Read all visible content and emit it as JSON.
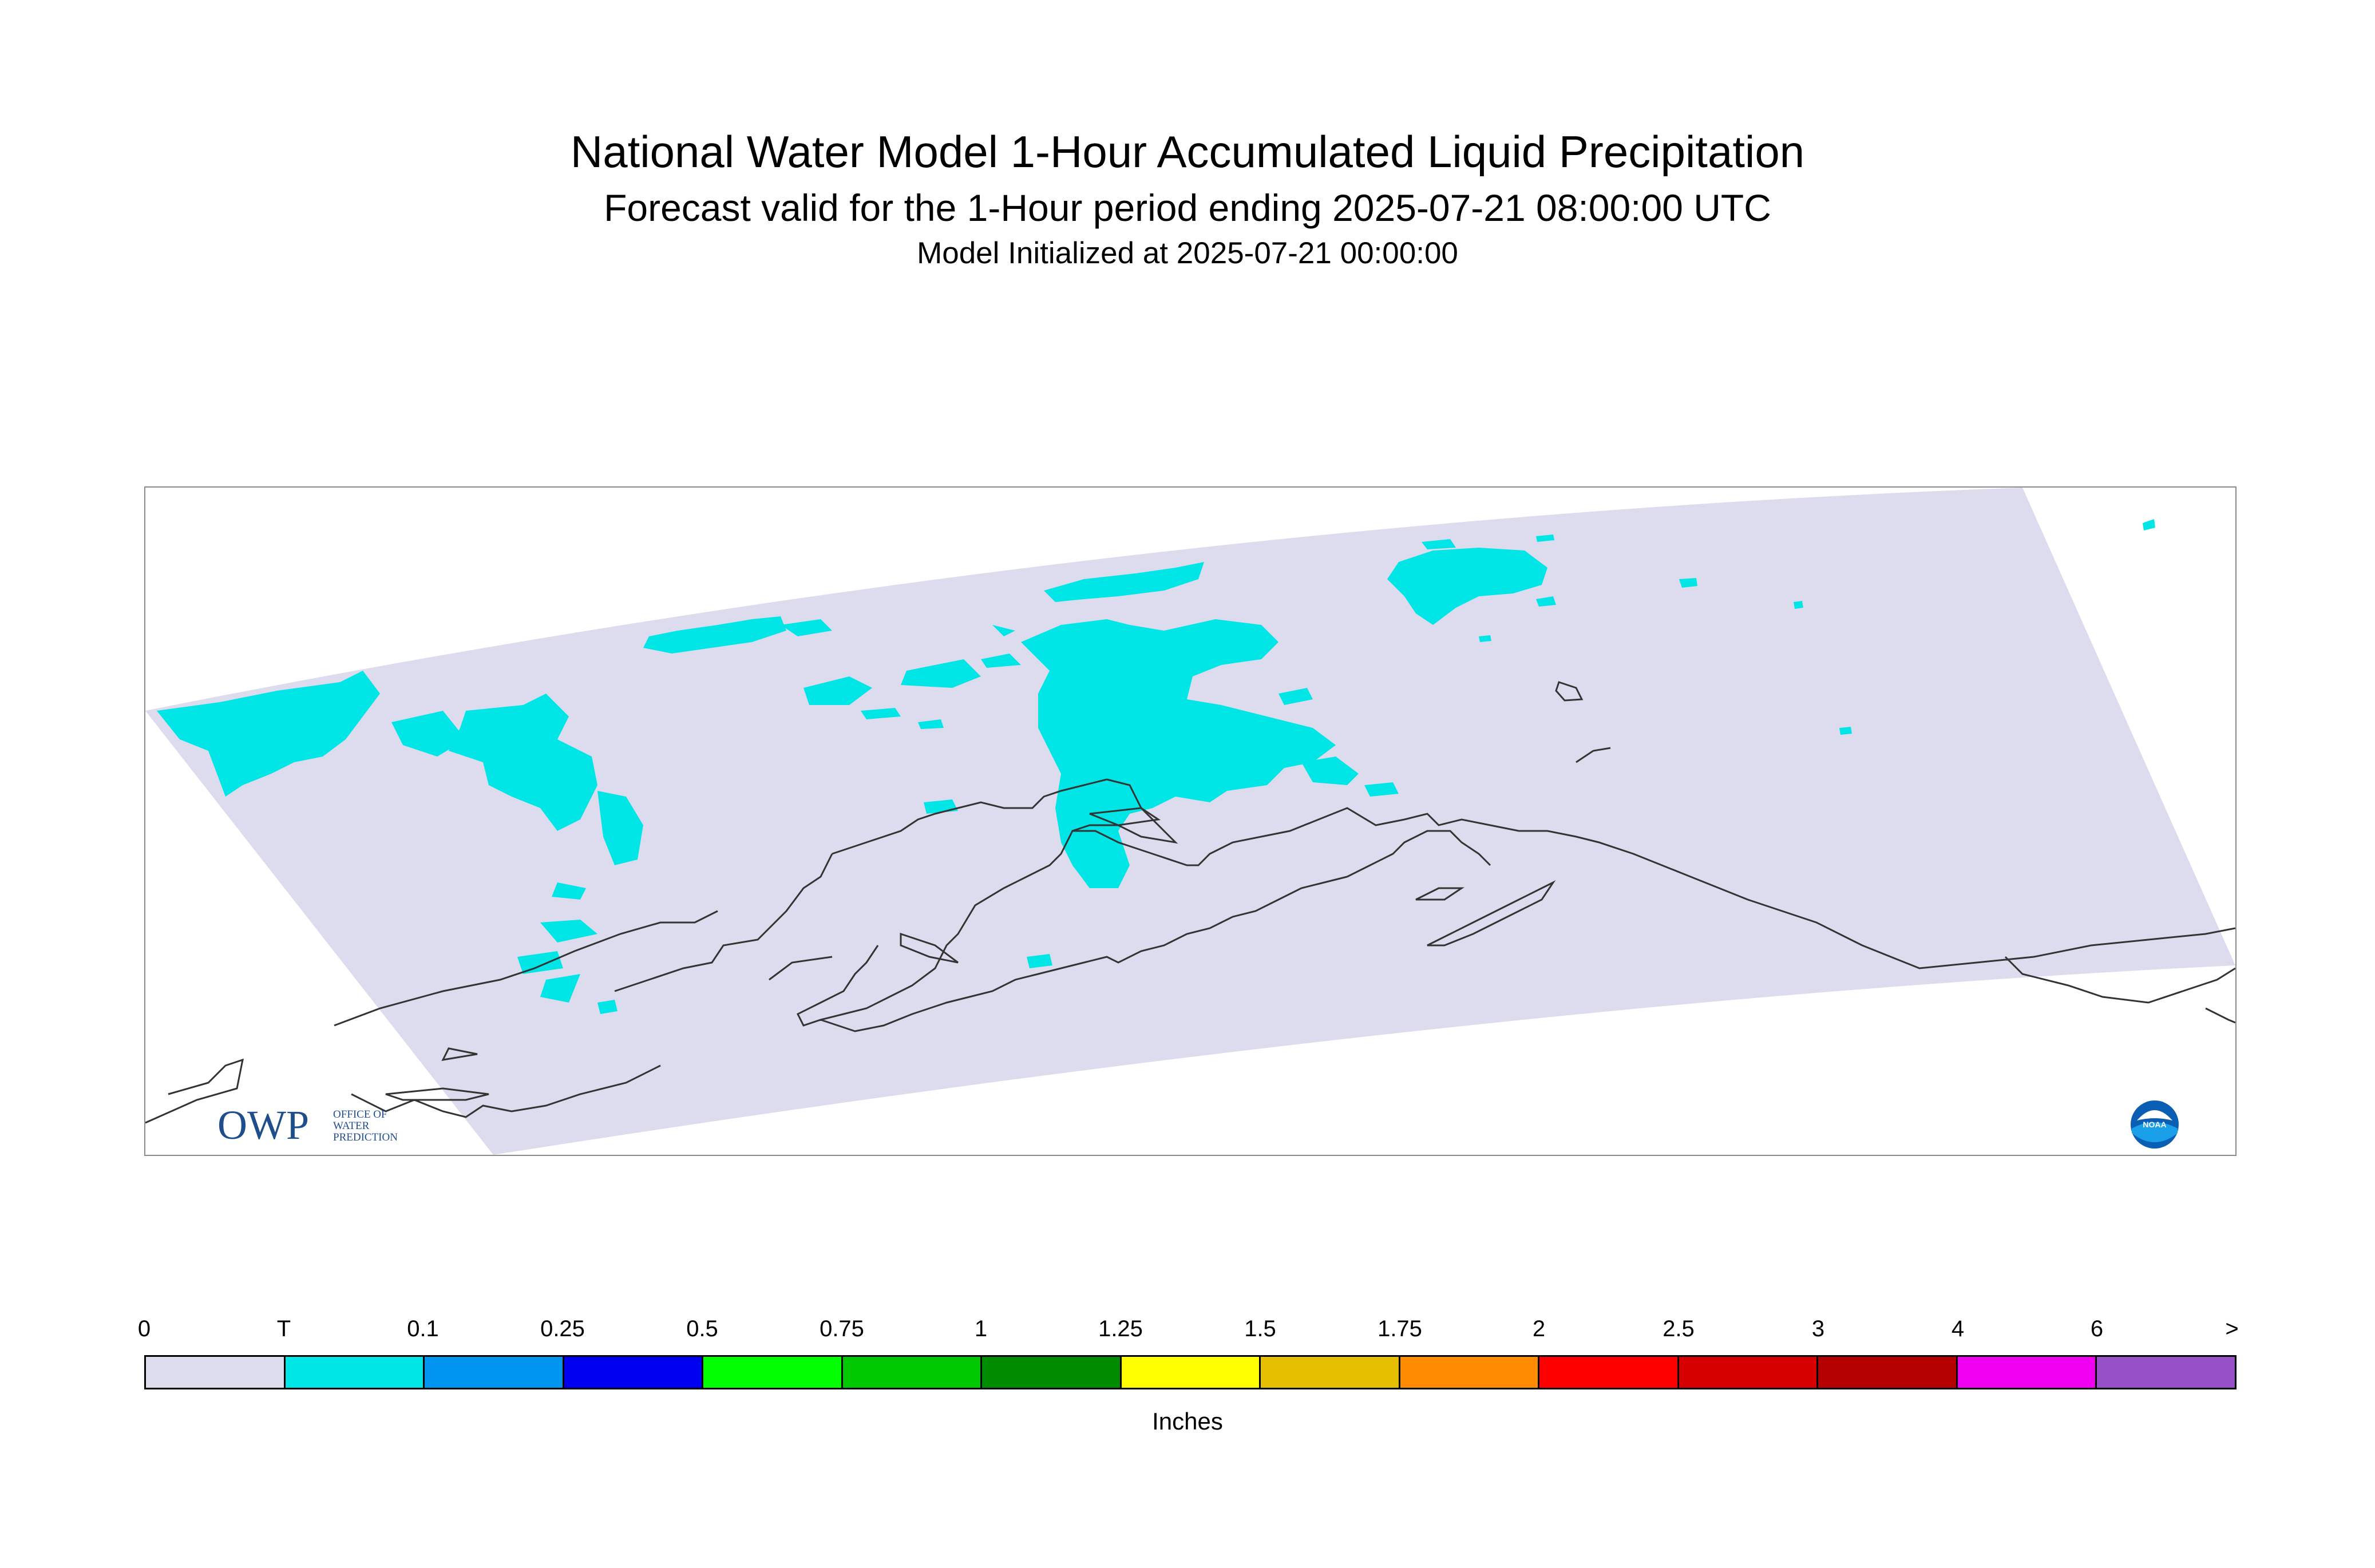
{
  "title": "National Water Model 1-Hour Accumulated Liquid Precipitation",
  "subtitle": "Forecast valid for the 1-Hour period ending 2025-07-21 08:00:00 UTC",
  "init_line": "Model Initialized at 2025-07-21 00:00:00",
  "map": {
    "region": "Alaska",
    "background_fill": "#dcdcee",
    "precip_fill_trace": "#00e6e6",
    "coastline_color": "#333333"
  },
  "logos": {
    "owp": {
      "mark": "OWP",
      "text_lines": [
        "OFFICE OF",
        "WATER",
        "PREDICTION"
      ],
      "color": "#1f4e8c"
    },
    "noaa": {
      "icon": "noaa-icon",
      "text": "NOAA"
    }
  },
  "legend": {
    "units": "Inches",
    "tick_labels": [
      "0",
      "T",
      "0.1",
      "0.25",
      "0.5",
      "0.75",
      "1",
      "1.25",
      "1.5",
      "1.75",
      "2",
      "2.5",
      "3",
      "4",
      "6",
      ">"
    ],
    "colors": [
      "#dcdcee",
      "#00e6e6",
      "#0096f0",
      "#0000f0",
      "#00ff00",
      "#00c800",
      "#008c00",
      "#ffff00",
      "#e6be00",
      "#ff8c00",
      "#ff0000",
      "#d70000",
      "#b40000",
      "#f000f0",
      "#9650c8"
    ]
  }
}
